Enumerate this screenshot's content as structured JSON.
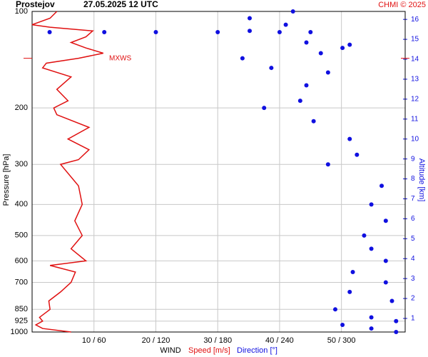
{
  "chart_data": {
    "type": "wind-profile",
    "station": "Prostejov",
    "title": "27.05.2025 12 UTC",
    "credit": "CHMI © 2025",
    "ylabel": "Pressure [hPa]",
    "y2label": "Altitude [km]",
    "xlabel": "WIND",
    "annotation": "MXWS",
    "annotation_pressure": 140,
    "log_scale": true,
    "grid": true,
    "ylim": [
      1000,
      100
    ],
    "yticks": [
      100,
      200,
      300,
      400,
      500,
      600,
      700,
      850,
      925,
      1000
    ],
    "y2lim": [
      0.32,
      16.4
    ],
    "y2ticks": [
      1,
      2,
      3,
      4,
      5,
      6,
      7,
      8,
      9,
      10,
      11,
      12,
      13,
      14,
      15,
      16
    ],
    "xlim": [
      0,
      60.3
    ],
    "xticks": [
      {
        "value": 10,
        "label": "10 / 60"
      },
      {
        "value": 20,
        "label": "20 / 120"
      },
      {
        "value": 30,
        "label": "30 / 180"
      },
      {
        "value": 40,
        "label": "40 / 240"
      },
      {
        "value": 50,
        "label": "50 / 300"
      }
    ],
    "x2lim": [
      0,
      361.8
    ],
    "series": [
      {
        "name": "Speed [m/s]",
        "color": "#e01010",
        "y": [
          1000,
          975,
          950,
          925,
          900,
          850,
          800,
          750,
          700,
          650,
          620,
          600,
          550,
          500,
          450,
          400,
          350,
          300,
          290,
          270,
          250,
          230,
          210,
          200,
          190,
          175,
          160,
          150,
          145,
          140,
          135,
          130,
          125,
          120,
          115,
          112,
          110,
          105,
          100
        ],
        "values": [
          6.3,
          1.7,
          0.6,
          1.7,
          1.2,
          2.9,
          2.7,
          4.6,
          6.3,
          7,
          2.9,
          8.7,
          6.3,
          8.1,
          6.9,
          8.1,
          7.5,
          4.6,
          7.5,
          9.2,
          5.8,
          9.2,
          4,
          3.5,
          5.8,
          4,
          6.3,
          1.7,
          2.3,
          7.5,
          11.5,
          8.7,
          6.3,
          8.7,
          9.8,
          2.9,
          0,
          2.9,
          4
        ]
      },
      {
        "name": "Direction [°]",
        "color": "#1010e0",
        "y": [
          1000,
          975,
          950,
          925,
          900,
          850,
          800,
          750,
          700,
          650,
          600,
          550,
          500,
          450,
          400,
          350,
          300,
          280,
          250,
          220,
          200,
          190,
          170,
          155,
          150,
          140,
          135,
          130,
          127,
          125,
          116,
          116,
          116,
          116,
          116,
          116,
          115,
          110,
          105,
          100
        ],
        "values": [
          353,
          329,
          301,
          353,
          329,
          294,
          349,
          308,
          343,
          311,
          343,
          329,
          322,
          343,
          329,
          339,
          287,
          315,
          308,
          273,
          225,
          260,
          266,
          287,
          232,
          204,
          280,
          301,
          308,
          266,
          17,
          70,
          120,
          180,
          240,
          270,
          211,
          246,
          211,
          253
        ]
      }
    ]
  }
}
